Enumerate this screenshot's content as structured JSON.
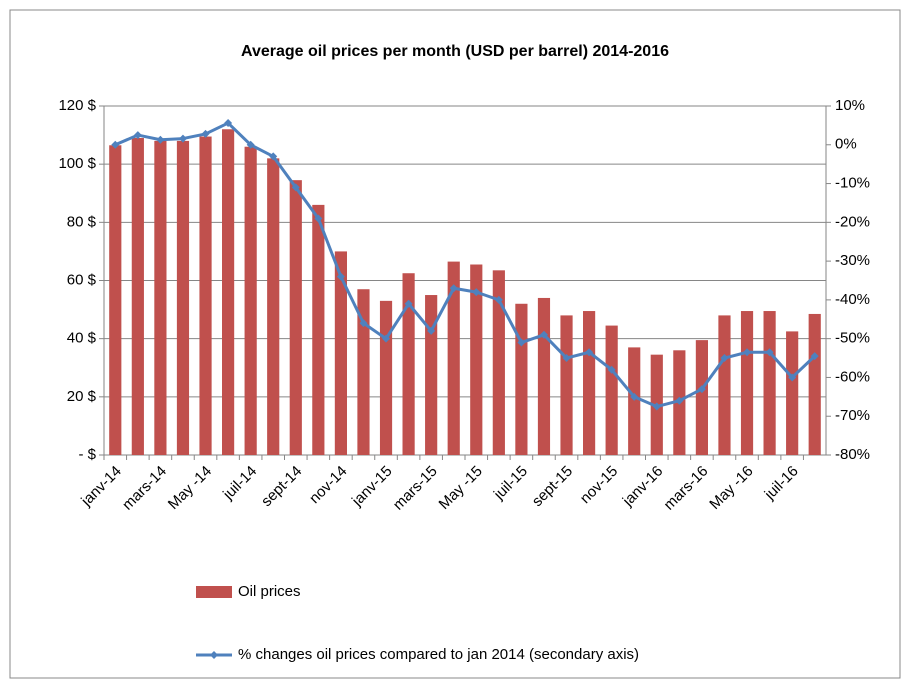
{
  "chart_data": {
    "type": "bar_line",
    "title": "Average oil prices per month (USD per barrel) 2014-2016",
    "categories": [
      "janv-14",
      null,
      "mars-14",
      null,
      "May -14",
      null,
      "juil-14",
      null,
      "sept-14",
      null,
      "nov-14",
      null,
      "janv-15",
      null,
      "mars-15",
      null,
      "May -15",
      null,
      "juil-15",
      null,
      "sept-15",
      null,
      "nov-15",
      null,
      "janv-16",
      null,
      "mars-16",
      null,
      "May -16",
      null,
      "juil-16",
      null
    ],
    "series": [
      {
        "name": "Oil prices",
        "color": "#c0504d",
        "type": "bar",
        "axis": "y",
        "values": [
          106.5,
          109,
          108,
          108,
          109.5,
          112,
          106,
          102,
          94.5,
          86,
          70,
          57,
          53,
          62.5,
          55,
          66.5,
          65.5,
          63.5,
          52,
          54,
          48,
          49.5,
          44.5,
          37,
          34.5,
          36,
          39.5,
          48,
          49.5,
          49.5,
          42.5,
          48.5
        ]
      },
      {
        "name": "% changes oil prices compared to jan 2014 (secondary axis)",
        "color": "#4f81bd",
        "type": "line",
        "axis": "y2",
        "values": [
          0,
          2.5,
          1.3,
          1.6,
          2.8,
          5.6,
          0,
          -3,
          -11,
          -19,
          -34,
          -46,
          -50,
          -41,
          -48,
          -37,
          -38,
          -40,
          -51,
          -49,
          -55,
          -53.5,
          -58,
          -65,
          -67.5,
          -66,
          -63,
          -55,
          -53.5,
          -53.5,
          -60,
          -54.5
        ]
      }
    ],
    "ylim": [
      0,
      120
    ],
    "yticks": [
      {
        "value": 0,
        "label": "- $"
      },
      {
        "value": 20,
        "label": "20 $"
      },
      {
        "value": 40,
        "label": "40 $"
      },
      {
        "value": 60,
        "label": "60 $"
      },
      {
        "value": 80,
        "label": "80 $"
      },
      {
        "value": 100,
        "label": "100 $"
      },
      {
        "value": 120,
        "label": "120 $"
      }
    ],
    "y2lim": [
      -80,
      10
    ],
    "y2ticks": [
      {
        "value": -80,
        "label": "-80%"
      },
      {
        "value": -70,
        "label": "-70%"
      },
      {
        "value": -60,
        "label": "-60%"
      },
      {
        "value": -50,
        "label": "-50%"
      },
      {
        "value": -40,
        "label": "-40%"
      },
      {
        "value": -30,
        "label": "-30%"
      },
      {
        "value": -20,
        "label": "-20%"
      },
      {
        "value": -10,
        "label": "-10%"
      },
      {
        "value": 0,
        "label": "0%"
      },
      {
        "value": 10,
        "label": "10%"
      }
    ],
    "grid": true,
    "legend": "bottom"
  }
}
